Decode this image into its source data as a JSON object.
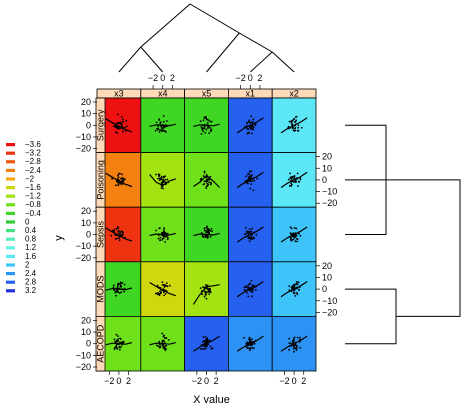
{
  "chart_data": {
    "type": "heatmap",
    "xlabel": "X value",
    "ylabel": "y",
    "columns": [
      "x3",
      "x4",
      "x5",
      "x1",
      "x2"
    ],
    "rows": [
      "Surgery",
      "Poisoning",
      "Sepsis",
      "MODS",
      "AECOPD"
    ],
    "panel_x_ticks": [
      "−2",
      "0",
      "2"
    ],
    "panel_y_ticks": [
      "20",
      "10",
      "0",
      "−10",
      "−20"
    ],
    "values": [
      [
        -3.6,
        -0.4,
        -0.6,
        2.8,
        1.6
      ],
      [
        -2.4,
        -1.2,
        -0.8,
        2.8,
        1.6
      ],
      [
        -3.0,
        -0.8,
        -0.4,
        2.6,
        2.0
      ],
      [
        -0.6,
        -1.6,
        -1.0,
        2.8,
        2.0
      ],
      [
        -0.8,
        -0.8,
        2.6,
        2.4,
        2.2
      ]
    ],
    "legend": {
      "title": "",
      "levels": [
        {
          "label": "−3.6",
          "color": "#ee1111"
        },
        {
          "label": "−3.2",
          "color": "#ee3311"
        },
        {
          "label": "−2.8",
          "color": "#f05510"
        },
        {
          "label": "−2.4",
          "color": "#f3800f"
        },
        {
          "label": "−2",
          "color": "#f5a50d"
        },
        {
          "label": "−1.6",
          "color": "#cfd80e"
        },
        {
          "label": "−1.2",
          "color": "#a2e311"
        },
        {
          "label": "−0.8",
          "color": "#6ee11a"
        },
        {
          "label": "−0.4",
          "color": "#3fd723"
        },
        {
          "label": "0",
          "color": "#33cc33"
        },
        {
          "label": "0.4",
          "color": "#44e080"
        },
        {
          "label": "0.8",
          "color": "#55ecbc"
        },
        {
          "label": "1.2",
          "color": "#66f3e3"
        },
        {
          "label": "1.6",
          "color": "#5ce7f7"
        },
        {
          "label": "2",
          "color": "#3ec4f8"
        },
        {
          "label": "2.4",
          "color": "#2c93f4"
        },
        {
          "label": "2.8",
          "color": "#2660ee"
        },
        {
          "label": "3.2",
          "color": "#2233dd"
        }
      ]
    },
    "right_axis_ticks": [
      "20",
      "10",
      "0",
      "−10",
      "−20"
    ],
    "strip_color": "#ffdab9",
    "dendrogram_top": "columns",
    "dendrogram_right": "rows"
  }
}
